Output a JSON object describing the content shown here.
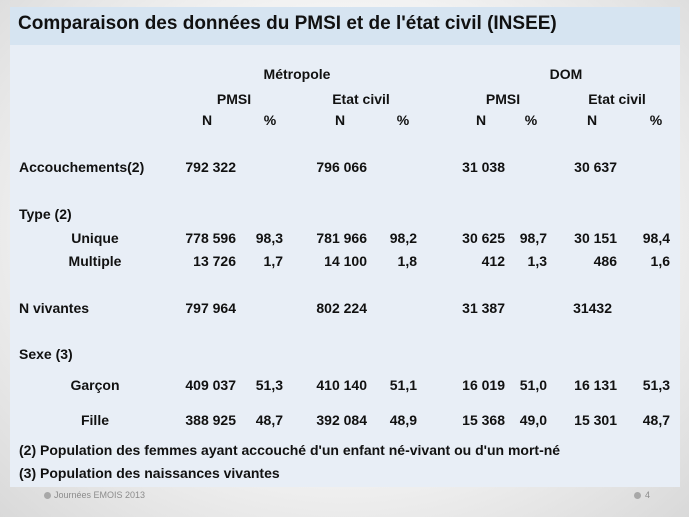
{
  "title": "Comparaison des données du PMSI et de l'état civil (INSEE)",
  "groups": {
    "metropole": "Métropole",
    "dom": "DOM"
  },
  "sources": {
    "pmsi": "PMSI",
    "etat_civil": "Etat civil"
  },
  "cols": {
    "n": "N",
    "pct": "%"
  },
  "rows": {
    "accouchements": {
      "label": "Accouchements(2)",
      "m_pmsi_n": "792 322",
      "m_ec_n": "796 066",
      "d_pmsi_n": "31 038",
      "d_ec_n": "30 637"
    },
    "type_label": "Type (2)",
    "unique": {
      "label": "Unique",
      "m_pmsi_n": "778 596",
      "m_pmsi_pct": "98,3",
      "m_ec_n": "781 966",
      "m_ec_pct": "98,2",
      "d_pmsi_n": "30 625",
      "d_pmsi_pct": "98,7",
      "d_ec_n": "30 151",
      "d_ec_pct": "98,4"
    },
    "multiple": {
      "label": "Multiple",
      "m_pmsi_n": "13 726",
      "m_pmsi_pct": "1,7",
      "m_ec_n": "14 100",
      "m_ec_pct": "1,8",
      "d_pmsi_n": "412",
      "d_pmsi_pct": "1,3",
      "d_ec_n": "486",
      "d_ec_pct": "1,6"
    },
    "vivantes": {
      "label": "N vivantes",
      "m_pmsi_n": "797 964",
      "m_ec_n": "802 224",
      "d_pmsi_n": "31 387",
      "d_ec_n": "31432"
    },
    "sexe_label": "Sexe (3)",
    "garcon": {
      "label": "Garçon",
      "m_pmsi_n": "409 037",
      "m_pmsi_pct": "51,3",
      "m_ec_n": "410 140",
      "m_ec_pct": "51,1",
      "d_pmsi_n": "16 019",
      "d_pmsi_pct": "51,0",
      "d_ec_n": "16 131",
      "d_ec_pct": "51,3"
    },
    "fille": {
      "label": "Fille",
      "m_pmsi_n": "388 925",
      "m_pmsi_pct": "48,7",
      "m_ec_n": "392 084",
      "m_ec_pct": "48,9",
      "d_pmsi_n": "15 368",
      "d_pmsi_pct": "49,0",
      "d_ec_n": "15 301",
      "d_ec_pct": "48,7"
    }
  },
  "notes": {
    "n2": "(2) Population des femmes ayant accouché d'un enfant né-vivant ou d'un mort-né",
    "n3": "(3) Population des naissances vivantes"
  },
  "footer": {
    "event": "Journées  EMOIS 2013",
    "page": "4"
  }
}
